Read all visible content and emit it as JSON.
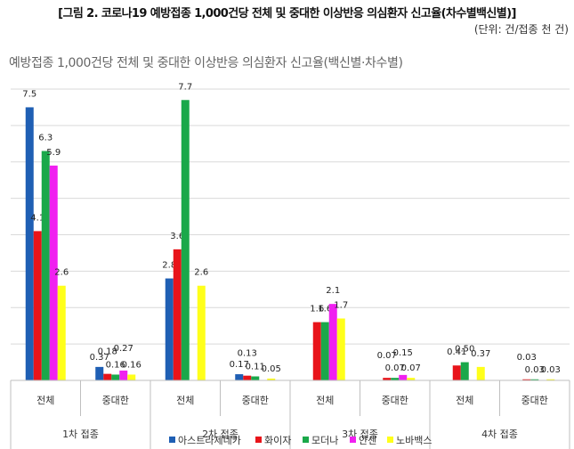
{
  "figure": {
    "title": "[그림 2. 코로나19 예방접종 1,000건당 전체 및 중대한 이상반응 의심환자 신고율(차수별백신별)]",
    "unit": "(단위: 건/접종 천 건)"
  },
  "chart_data": {
    "type": "bar",
    "title": "예방접종 1,000건당 전체 및 중대한 이상반응 의심환자 신고율(백신별·차수별)",
    "groups": [
      {
        "label": "1차 접종",
        "subcategories": [
          "전체",
          "중대한"
        ]
      },
      {
        "label": "2차 접종",
        "subcategories": [
          "전체",
          "중대한"
        ]
      },
      {
        "label": "3차 접종",
        "subcategories": [
          "전체",
          "중대한"
        ]
      },
      {
        "label": "4차 접종",
        "subcategories": [
          "전체",
          "중대한"
        ]
      }
    ],
    "series": [
      {
        "name": "아스트라제네카",
        "color": "#1f5fb4",
        "values": [
          7.5,
          0.37,
          2.8,
          0.17,
          null,
          null,
          null,
          null
        ],
        "labels": [
          "7.5",
          "0.37",
          "2.8",
          "0.17",
          "",
          "",
          "",
          ""
        ]
      },
      {
        "name": "화이자",
        "color": "#e8141a",
        "values": [
          4.1,
          0.18,
          3.6,
          0.13,
          1.6,
          0.07,
          0.41,
          0.03
        ],
        "labels": [
          "4.1",
          "0.18",
          "3.6",
          "0.13",
          "1.6",
          "0.07",
          "0.41",
          "0.03"
        ]
      },
      {
        "name": "모더나",
        "color": "#1aa84a",
        "values": [
          6.3,
          0.16,
          7.7,
          0.11,
          1.6,
          0.07,
          0.5,
          0.03
        ],
        "labels": [
          "6.3",
          "0.16",
          "7.7",
          "0.11",
          "1.6",
          "0.07",
          "0.50",
          "0.03"
        ]
      },
      {
        "name": "얀센",
        "color": "#f020f0",
        "values": [
          5.9,
          0.27,
          null,
          null,
          2.1,
          0.15,
          null,
          null
        ],
        "labels": [
          "5.9",
          "0.27",
          "",
          "",
          "2.1",
          "0.15",
          "",
          ""
        ]
      },
      {
        "name": "노바백스",
        "color": "#ffff1a",
        "values": [
          2.6,
          0.16,
          2.6,
          0.05,
          1.7,
          0.07,
          0.37,
          0.03
        ],
        "labels": [
          "2.6",
          "0.16",
          "2.6",
          "0.05",
          "1.7",
          "0.07",
          "0.37",
          "0.03"
        ]
      }
    ],
    "ylim": [
      0,
      8
    ],
    "grid": true,
    "legend": "bottom"
  }
}
